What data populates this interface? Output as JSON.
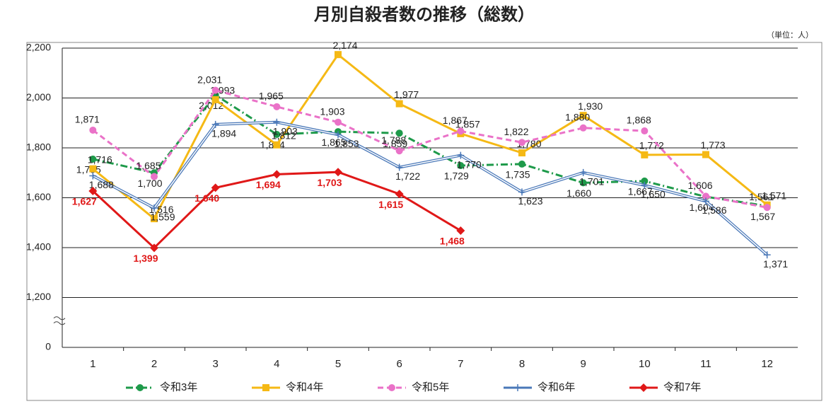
{
  "chart_data": {
    "type": "line",
    "title": "月別自殺者数の推移（総数）",
    "unit_note": "（単位：人）",
    "categories": [
      "1",
      "2",
      "3",
      "4",
      "5",
      "6",
      "7",
      "8",
      "9",
      "10",
      "11",
      "12"
    ],
    "ylim": [
      0,
      2200
    ],
    "broken_axis": true,
    "yticks": [
      0,
      {
        "value": 1200,
        "label": "1,200"
      },
      {
        "value": 1400,
        "label": "1,400"
      },
      {
        "value": 1600,
        "label": "1,600"
      },
      {
        "value": 1800,
        "label": "1,800"
      },
      {
        "value": 2000,
        "label": "2,000"
      },
      {
        "value": 2200,
        "label": "2,200"
      }
    ],
    "grid": true,
    "legend": "bottom",
    "series": [
      {
        "name": "令和3年",
        "color": "#1e9a4a",
        "dash": "10,4,2,4",
        "marker": "circle",
        "values": [
          1755,
          1700,
          2012,
          1854,
          1865,
          1859,
          1729,
          1735,
          1660,
          1667,
          1604,
          1567
        ],
        "value_labels": [
          "1,755",
          "1,700",
          "2,012",
          "1,854",
          "1,865",
          "1,859",
          "1,729",
          "1,735",
          "1,660",
          "1,667",
          "1,604",
          "1,567"
        ]
      },
      {
        "name": "令和4年",
        "color": "#f5b915",
        "dash": "",
        "marker": "square",
        "values": [
          1716,
          1516,
          1993,
          1812,
          2174,
          1977,
          1857,
          1780,
          1930,
          1772,
          1773,
          1571
        ],
        "value_labels": [
          "1,716",
          "1,516",
          "1,993",
          "1,812",
          "2,174",
          "1,977",
          "1,857",
          "1,780",
          "1,930",
          "1,772",
          "1,773",
          "1,571"
        ]
      },
      {
        "name": "令和5年",
        "color": "#ea72c8",
        "dash": "8,5",
        "marker": "circle",
        "values": [
          1871,
          1685,
          2031,
          1965,
          1903,
          1788,
          1867,
          1822,
          1880,
          1868,
          1606,
          1561
        ],
        "value_labels": [
          "1,871",
          "1,685",
          "2,031",
          "1,965",
          "1,903",
          "1,788",
          "1,867",
          "1,822",
          "1,880",
          "1,868",
          "1,606",
          "1,561"
        ]
      },
      {
        "name": "令和6年",
        "color": "#4a78b8",
        "dash": "",
        "marker": "plus",
        "values": [
          1688,
          1559,
          1894,
          1903,
          1853,
          1722,
          1770,
          1623,
          1701,
          1650,
          1586,
          1371
        ],
        "value_labels": [
          "1,688",
          "1,559",
          "1,894",
          "1,903",
          "1,853",
          "1,722",
          "1,770",
          "1,623",
          "1,701",
          "1,650",
          "1,586",
          "1,371"
        ]
      },
      {
        "name": "令和7年",
        "color": "#e01818",
        "dash": "",
        "marker": "diamond",
        "values": [
          1627,
          1399,
          1640,
          1694,
          1703,
          1615,
          1468,
          null,
          null,
          null,
          null,
          null
        ],
        "value_labels": [
          "1,627",
          "1,399",
          "1,640",
          "1,694",
          "1,703",
          "1,615",
          "1,468",
          null,
          null,
          null,
          null,
          null
        ]
      }
    ]
  }
}
